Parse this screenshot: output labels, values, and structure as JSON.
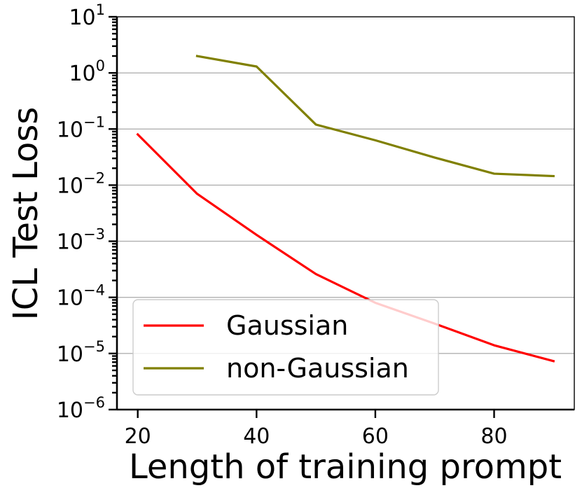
{
  "chart_data": {
    "type": "line",
    "xlabel": "Length of training prompt",
    "ylabel": "ICL Test Loss",
    "yscale": "log",
    "xlim": [
      16.5,
      93.5
    ],
    "ylim": [
      1e-06,
      10
    ],
    "xticks": [
      {
        "value": 20,
        "label": "20"
      },
      {
        "value": 40,
        "label": "40"
      },
      {
        "value": 60,
        "label": "60"
      },
      {
        "value": 80,
        "label": "80"
      }
    ],
    "yticks": [
      {
        "value": 1e-06,
        "base": "10",
        "exp": "−6"
      },
      {
        "value": 1e-05,
        "base": "10",
        "exp": "−5"
      },
      {
        "value": 0.0001,
        "base": "10",
        "exp": "−4"
      },
      {
        "value": 0.001,
        "base": "10",
        "exp": "−3"
      },
      {
        "value": 0.01,
        "base": "10",
        "exp": "−2"
      },
      {
        "value": 0.1,
        "base": "10",
        "exp": "−1"
      },
      {
        "value": 1,
        "base": "10",
        "exp": "0"
      },
      {
        "value": 10,
        "base": "10",
        "exp": "1"
      }
    ],
    "grid": "y-major",
    "legend_position": "lower-left",
    "series": [
      {
        "name": "Gaussian",
        "color": "#ff0000",
        "x": [
          20,
          30,
          40,
          50,
          60,
          70,
          80,
          90
        ],
        "y": [
          0.08,
          0.007,
          0.0013,
          0.00026,
          8e-05,
          3.4e-05,
          1.4e-05,
          7.3e-06
        ]
      },
      {
        "name": "non-Gaussian",
        "color": "#808000",
        "x": [
          30,
          40,
          50,
          60,
          70,
          80,
          90
        ],
        "y": [
          2.0,
          1.3,
          0.12,
          0.063,
          0.031,
          0.016,
          0.0145
        ]
      }
    ]
  }
}
